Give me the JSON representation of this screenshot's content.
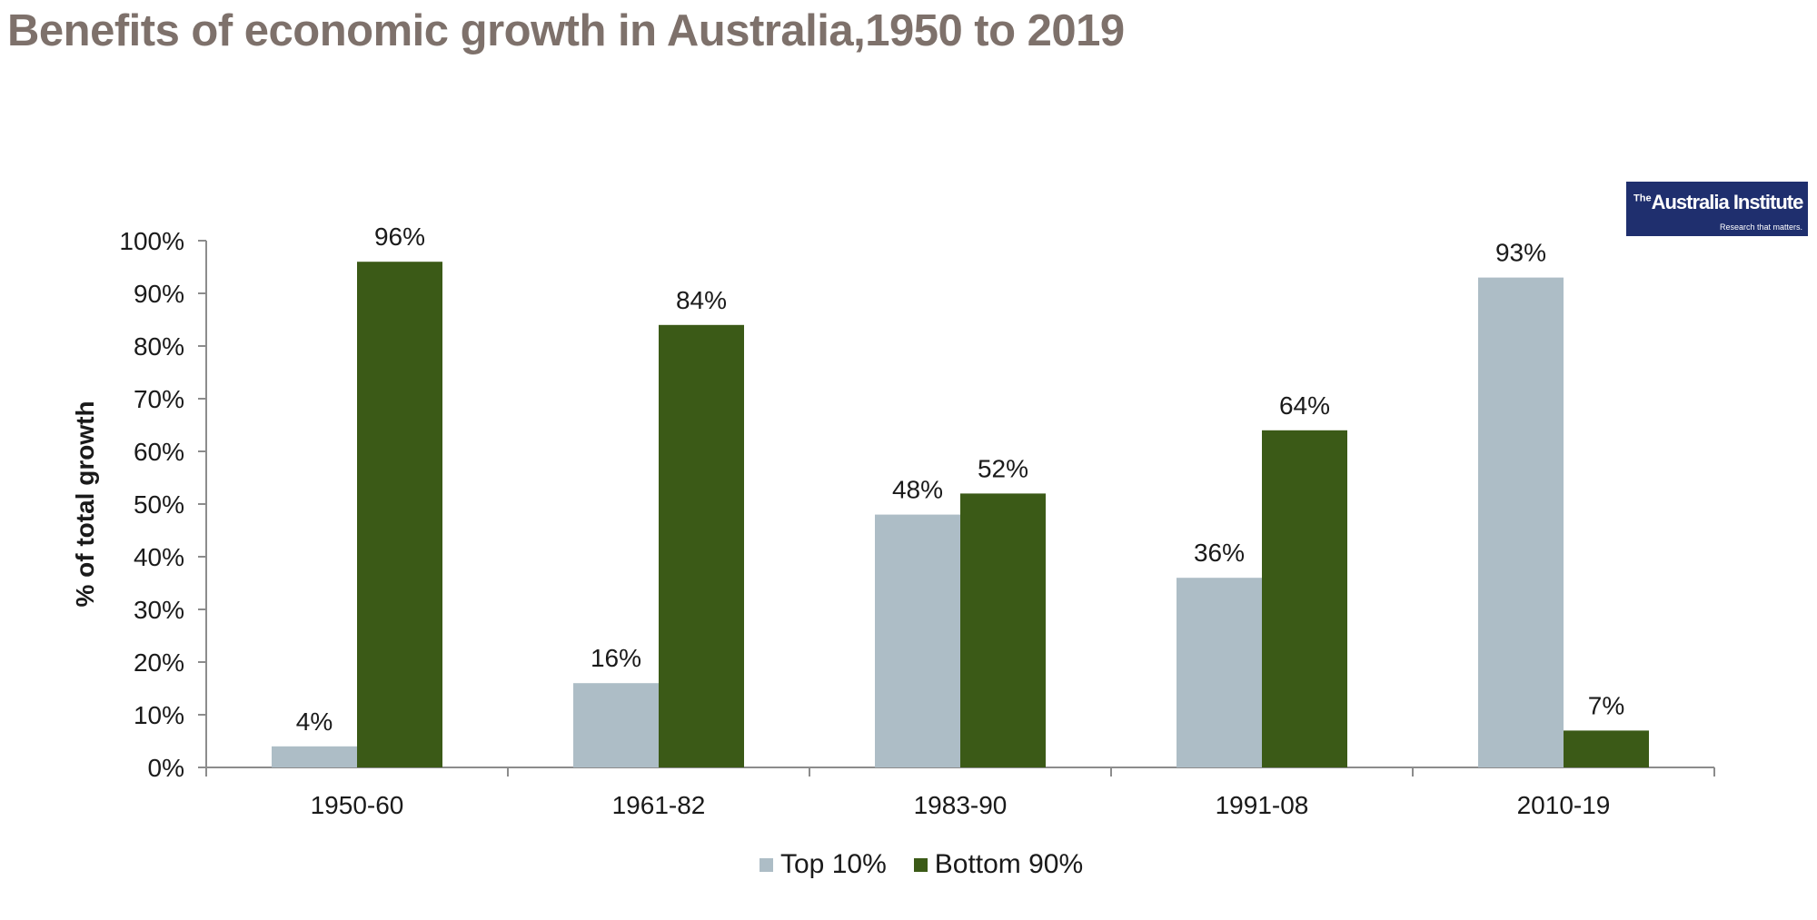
{
  "title": "Benefits of economic growth in Australia,1950 to 2019",
  "logo": {
    "superscript": "The",
    "name": "Australia Institute",
    "tagline": "Research that matters."
  },
  "colors": {
    "top10": "#adbdc6",
    "bottom90": "#3b5a17",
    "title": "#7e716b",
    "logo_bg": "#1f2f6e"
  },
  "chart_data": {
    "type": "bar",
    "title": "Benefits of economic growth in Australia,1950 to 2019",
    "xlabel": "",
    "ylabel": "% of total growth",
    "ylim": [
      0,
      100
    ],
    "yticks": [
      "0%",
      "10%",
      "20%",
      "30%",
      "40%",
      "50%",
      "60%",
      "70%",
      "80%",
      "90%",
      "100%"
    ],
    "categories": [
      "1950-60",
      "1961-82",
      "1983-90",
      "1991-08",
      "2010-19"
    ],
    "series": [
      {
        "name": "Top 10%",
        "values": [
          4,
          16,
          48,
          36,
          93
        ],
        "labels": [
          "4%",
          "16%",
          "48%",
          "36%",
          "93%"
        ]
      },
      {
        "name": "Bottom 90%",
        "values": [
          96,
          84,
          52,
          64,
          7
        ],
        "labels": [
          "96%",
          "84%",
          "52%",
          "64%",
          "7%"
        ]
      }
    ],
    "legend_position": "bottom",
    "grid": false
  }
}
